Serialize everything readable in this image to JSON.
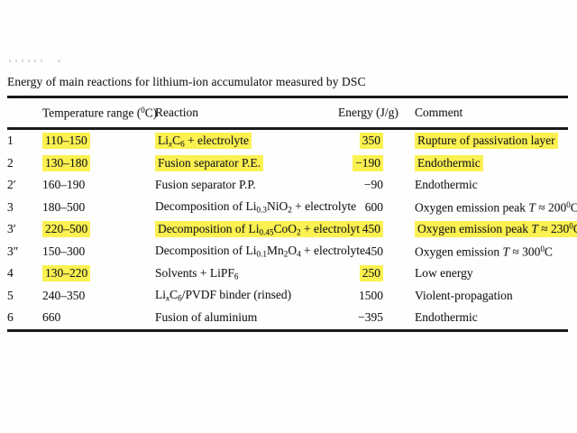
{
  "title": "Energy of main reactions for lithium-ion accumulator measured by DSC",
  "colors": {
    "highlight": "#fbf151",
    "text": "#1c1c1c",
    "rule": "#1a1a1a",
    "page": "#fefefe"
  },
  "table": {
    "headers": {
      "label": "",
      "temp_parts": [
        {
          "t": "text",
          "v": "Temperature range ("
        },
        {
          "t": "sup",
          "v": "0"
        },
        {
          "t": "text",
          "v": "C)"
        }
      ],
      "reaction": "Reaction",
      "energy": "Energy (J/g)",
      "comment": "Comment"
    },
    "rows": [
      {
        "label": "1",
        "temp": "110–150",
        "reaction": [
          {
            "t": "text",
            "v": "Li"
          },
          {
            "t": "subi",
            "v": "x"
          },
          {
            "t": "text",
            "v": "C"
          },
          {
            "t": "sub",
            "v": "6"
          },
          {
            "t": "text",
            "v": " + electrolyte"
          }
        ],
        "energy": "350",
        "comment": [
          {
            "t": "text",
            "v": "Rupture of passivation layer"
          }
        ],
        "hl": {
          "temp": true,
          "reaction": true,
          "energy": true,
          "comment": true
        }
      },
      {
        "label": "2",
        "temp": "130–180",
        "reaction": [
          {
            "t": "text",
            "v": "Fusion separator P.E."
          }
        ],
        "energy": "−190",
        "comment": [
          {
            "t": "text",
            "v": "Endothermic"
          }
        ],
        "hl": {
          "temp": true,
          "reaction": true,
          "energy": true,
          "comment": true
        }
      },
      {
        "label": "2′",
        "temp": "160–190",
        "reaction": [
          {
            "t": "text",
            "v": "Fusion separator P.P."
          }
        ],
        "energy": "−90",
        "comment": [
          {
            "t": "text",
            "v": "Endothermic"
          }
        ],
        "hl": {}
      },
      {
        "label": "3",
        "temp": "180–500",
        "reaction": [
          {
            "t": "text",
            "v": "Decomposition of Li"
          },
          {
            "t": "sub",
            "v": "0.3"
          },
          {
            "t": "text",
            "v": "NiO"
          },
          {
            "t": "sub",
            "v": "2"
          },
          {
            "t": "text",
            "v": " + electrolyte"
          }
        ],
        "energy": "600",
        "comment": [
          {
            "t": "text",
            "v": "Oxygen emission peak "
          },
          {
            "t": "i",
            "v": "T"
          },
          {
            "t": "text",
            "v": " ≈ 200"
          },
          {
            "t": "sup",
            "v": "0"
          },
          {
            "t": "text",
            "v": "C"
          }
        ],
        "hl": {}
      },
      {
        "label": "3′",
        "temp": "220–500",
        "reaction": [
          {
            "t": "text",
            "v": "Decomposition of Li"
          },
          {
            "t": "sub",
            "v": "0.45"
          },
          {
            "t": "text",
            "v": "CoO"
          },
          {
            "t": "sub",
            "v": "2"
          },
          {
            "t": "text",
            "v": " + electrolyte"
          }
        ],
        "energy": "450",
        "comment": [
          {
            "t": "text",
            "v": "Oxygen emission peak "
          },
          {
            "t": "i",
            "v": "T"
          },
          {
            "t": "text",
            "v": " ≈ 230"
          },
          {
            "t": "sup",
            "v": "0"
          },
          {
            "t": "text",
            "v": "C"
          }
        ],
        "hl": {
          "temp": true,
          "reaction": true,
          "energy": true,
          "comment": true
        }
      },
      {
        "label": "3″",
        "temp": "150–300",
        "reaction": [
          {
            "t": "text",
            "v": "Decomposition of Li"
          },
          {
            "t": "sub",
            "v": "0.1"
          },
          {
            "t": "text",
            "v": "Mn"
          },
          {
            "t": "sub",
            "v": "2"
          },
          {
            "t": "text",
            "v": "O"
          },
          {
            "t": "sub",
            "v": "4"
          },
          {
            "t": "text",
            "v": " + electrolyte"
          }
        ],
        "energy": "450",
        "comment": [
          {
            "t": "text",
            "v": "Oxygen emission "
          },
          {
            "t": "i",
            "v": "T"
          },
          {
            "t": "text",
            "v": " ≈ 300"
          },
          {
            "t": "sup",
            "v": "0"
          },
          {
            "t": "text",
            "v": "C"
          }
        ],
        "hl": {}
      },
      {
        "label": "4",
        "temp": "130–220",
        "reaction": [
          {
            "t": "text",
            "v": "Solvents + LiPF"
          },
          {
            "t": "sub",
            "v": "6"
          }
        ],
        "energy": "250",
        "comment": [
          {
            "t": "text",
            "v": "Low energy"
          }
        ],
        "hl": {
          "temp": true,
          "energy": true
        }
      },
      {
        "label": "5",
        "temp": "240–350",
        "reaction": [
          {
            "t": "text",
            "v": "Li"
          },
          {
            "t": "subi",
            "v": "x"
          },
          {
            "t": "text",
            "v": "C"
          },
          {
            "t": "sub",
            "v": "6"
          },
          {
            "t": "text",
            "v": "/PVDF binder (rinsed)"
          }
        ],
        "energy": "1500",
        "comment": [
          {
            "t": "text",
            "v": "Violent-propagation"
          }
        ],
        "hl": {}
      },
      {
        "label": "6",
        "temp": "660",
        "reaction": [
          {
            "t": "text",
            "v": "Fusion of aluminium"
          }
        ],
        "energy": "−395",
        "comment": [
          {
            "t": "text",
            "v": "Endothermic"
          }
        ],
        "hl": {}
      }
    ]
  }
}
